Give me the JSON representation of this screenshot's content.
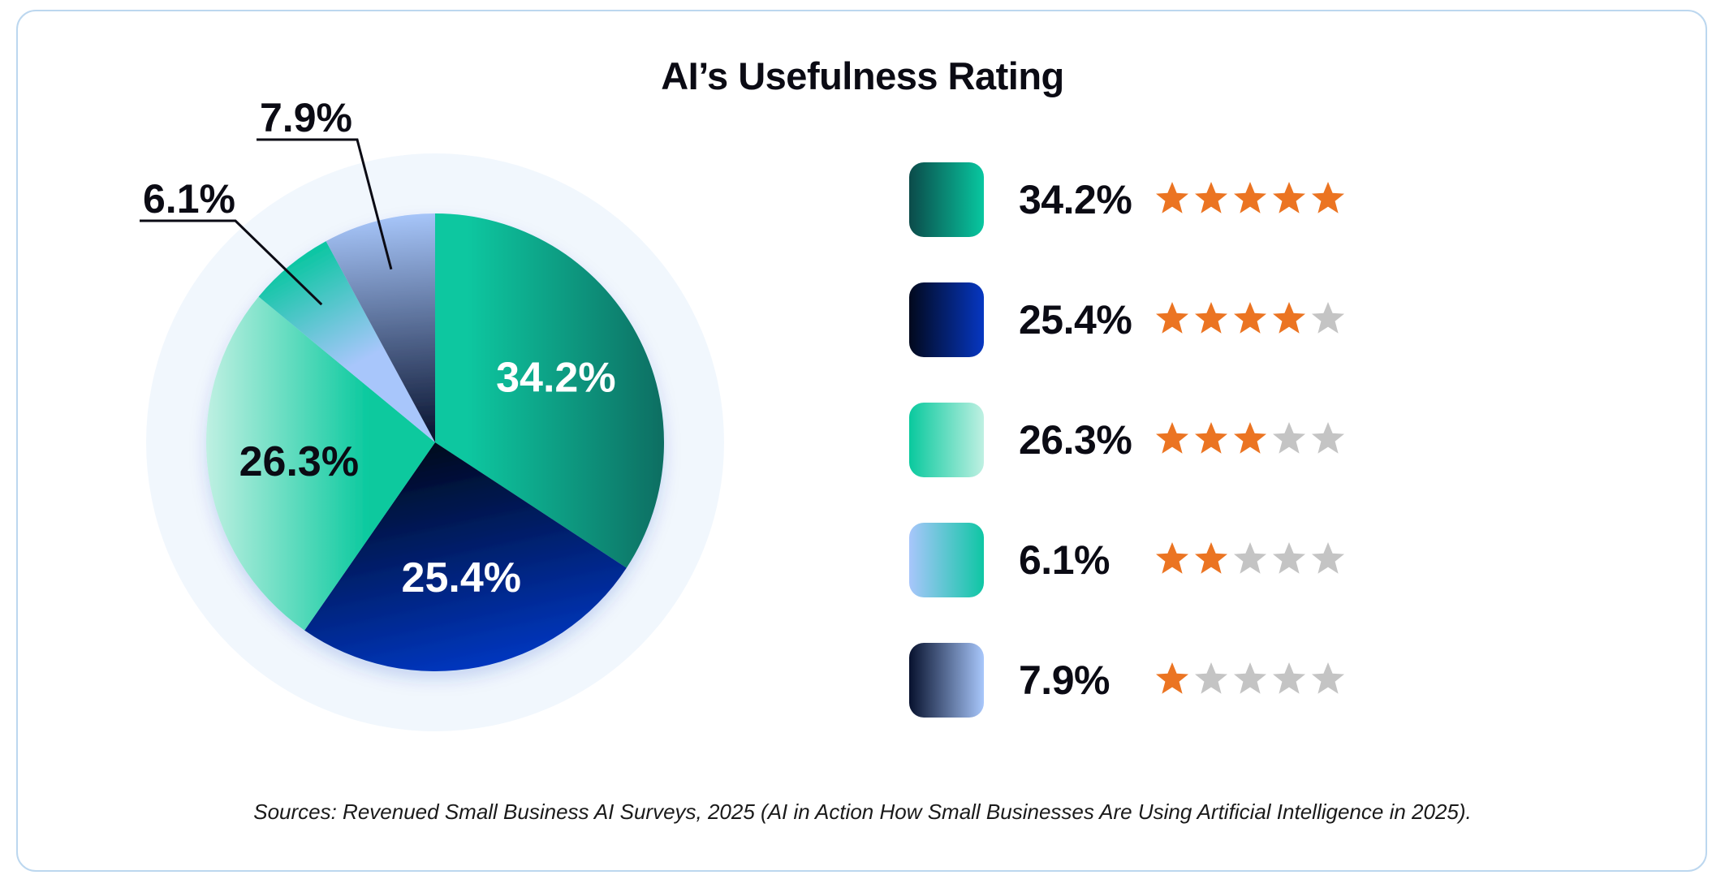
{
  "title": "AI’s Usefulness Rating",
  "sources": "Sources: Revenued Small Business AI Surveys, 2025 (AI in Action How Small Businesses Are Using Artificial Intelligence in 2025).",
  "chart_data": {
    "type": "pie",
    "title": "AI’s Usefulness Rating",
    "slices": [
      {
        "label": "34.2%",
        "value": 34.2,
        "stars": 5,
        "colors": [
          "#08c7a0",
          "#0b6e62"
        ],
        "label_color": "#ffffff",
        "label_placement": "inside"
      },
      {
        "label": "25.4%",
        "value": 25.4,
        "stars": 4,
        "colors": [
          "#02091d",
          "#0637c2"
        ],
        "label_color": "#ffffff",
        "label_placement": "inside"
      },
      {
        "label": "26.3%",
        "value": 26.3,
        "stars": 3,
        "colors": [
          "#09c99e",
          "#bff0e2"
        ],
        "label_color": "#0b0b14",
        "label_placement": "inside"
      },
      {
        "label": "6.1%",
        "value": 6.1,
        "stars": 2,
        "colors": [
          "#a8c6fb",
          "#0ec6a4"
        ],
        "label_color": "#0b0b14",
        "label_placement": "outside"
      },
      {
        "label": "7.9%",
        "value": 7.9,
        "stars": 1,
        "colors": [
          "#07112e",
          "#a8c7fb"
        ],
        "label_color": "#0b0b14",
        "label_placement": "outside"
      }
    ],
    "max_stars": 5,
    "star_color": "#eb7422",
    "star_empty_color": "#c4c4c4",
    "background_ring_color": "#f1f7fd"
  }
}
